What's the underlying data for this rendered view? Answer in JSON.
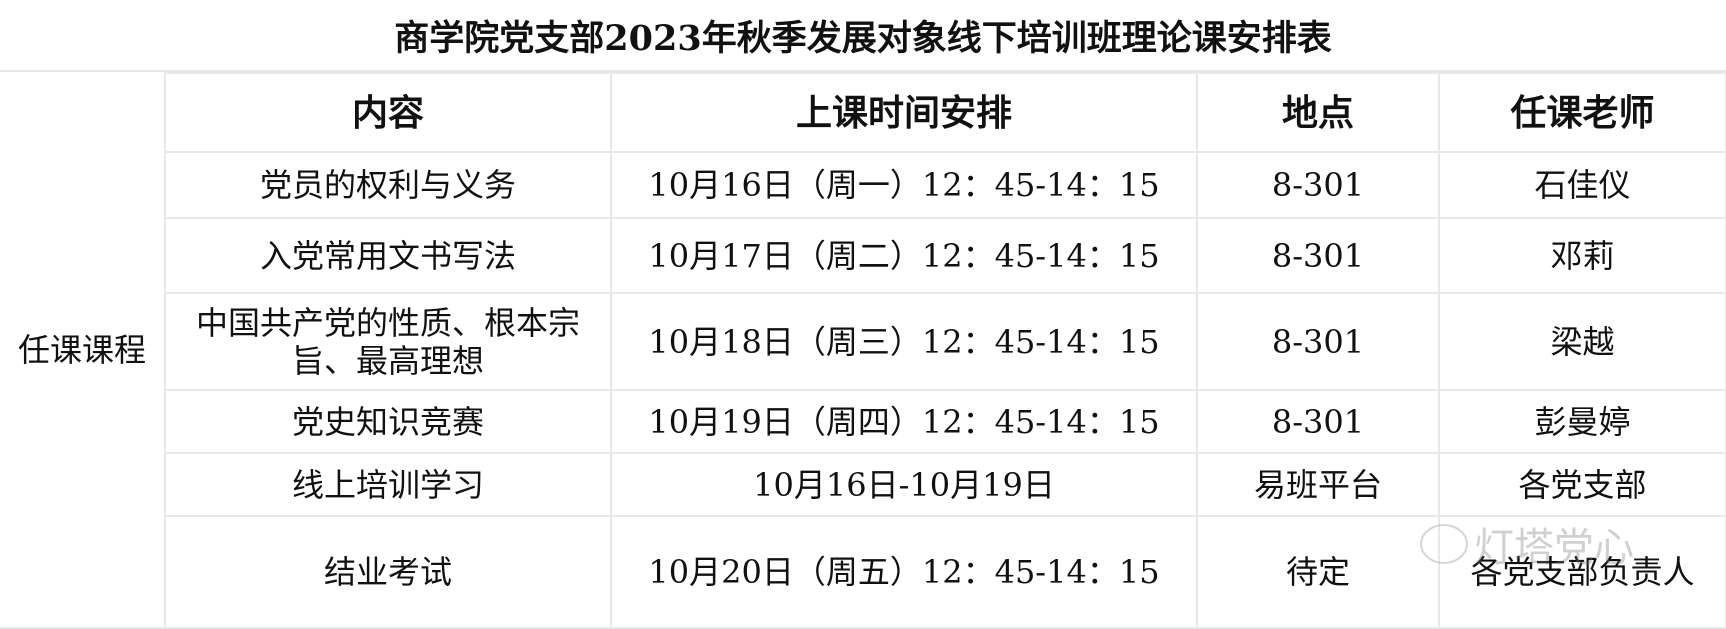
{
  "title": "商学院党支部2023年秋季发展对象线下培训班理论课安排表",
  "side_label": "任课课程",
  "headers": [
    "内容",
    "上课时间安排",
    "地点",
    "任课老师"
  ],
  "rows": [
    {
      "content": "党员的权利与义务",
      "time": "10月16日（周一）12：45-14：15",
      "place": "8-301",
      "teacher": "石佳仪"
    },
    {
      "content": "入党常用文书写法",
      "time": "10月17日（周二）12：45-14：15",
      "place": "8-301",
      "teacher": "邓莉"
    },
    {
      "content": "中国共产党的性质、根本宗旨、最高理想",
      "time": "10月18日（周三）12：45-14：15",
      "place": "8-301",
      "teacher": "梁越"
    },
    {
      "content": "党史知识竞赛",
      "time": "10月19日（周四）12：45-14：15",
      "place": "8-301",
      "teacher": "彭曼婷"
    },
    {
      "content": "线上培训学习",
      "time": "10月16日-10月19日",
      "place": "易班平台",
      "teacher": "各党支部"
    },
    {
      "content": "结业考试",
      "time": "10月20日（周五）12：45-14：15",
      "place": "待定",
      "teacher": "各党支部负责人"
    }
  ],
  "watermark": "灯塔党心"
}
